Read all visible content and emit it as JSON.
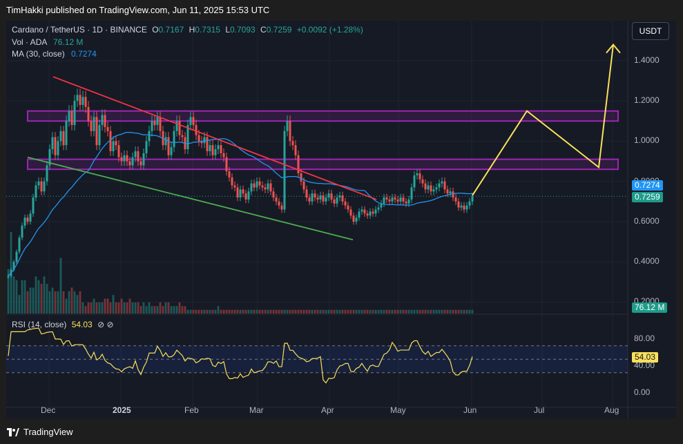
{
  "publisher_line": "TimHakki published on TradingView.com, Jun 11, 2025 15:53 UTC",
  "legend": {
    "symbol": "Cardano / TetherUS · 1D · BINANCE",
    "o_key": "O",
    "o_val": "0.7167",
    "h_key": "H",
    "h_val": "0.7315",
    "l_key": "L",
    "l_val": "0.7093",
    "c_key": "C",
    "c_val": "0.7259",
    "change": "+0.0092 (+1.28%)",
    "vol_label": "Vol · ADA",
    "vol_val": "76.12 M",
    "ma_label": "MA (30, close)",
    "ma_val": "0.7274"
  },
  "rsi_legend": {
    "label": "RSI (14, close)",
    "value": "54.03",
    "icons": "⊘ ⊘"
  },
  "currency_button": "USDT",
  "price_axis": [
    "1.4000",
    "1.2000",
    "1.0000",
    "0.8000",
    "0.6000",
    "0.4000",
    "0.2000"
  ],
  "rsi_axis": [
    "80.00",
    "40.00",
    "0.00"
  ],
  "time_axis": [
    "Dec",
    "2025",
    "Feb",
    "Mar",
    "Apr",
    "May",
    "Jun",
    "Jul",
    "Aug"
  ],
  "tags": {
    "ma": "0.7274",
    "price": "0.7259",
    "volume": "76.12 M",
    "rsi": "54.03"
  },
  "colors": {
    "up": "#26a69a",
    "down": "#ef5350",
    "ma": "#2196f3",
    "rsi": "#fbe05c",
    "zone": "#9c27b0",
    "projection": "#fbe05c",
    "res_line": "#f23645",
    "sup_line": "#4caf50"
  },
  "footer_logo": "TradingView",
  "chart_data": [
    {
      "type": "candlestick",
      "x_ticks": [
        "Dec",
        "2025",
        "Feb",
        "Mar",
        "Apr",
        "May",
        "Jun",
        "Jul",
        "Aug"
      ],
      "ylim": [
        0.2,
        1.5
      ],
      "last_close": 0.7259,
      "ma30_last": 0.7274,
      "closes": [
        0.33,
        0.36,
        0.4,
        0.45,
        0.52,
        0.58,
        0.62,
        0.6,
        0.64,
        0.72,
        0.78,
        0.8,
        0.75,
        0.8,
        0.88,
        0.96,
        1.02,
        0.93,
        1.0,
        1.05,
        0.98,
        1.1,
        1.15,
        1.08,
        1.2,
        1.23,
        1.18,
        1.22,
        1.17,
        1.1,
        1.05,
        1.12,
        0.98,
        1.08,
        1.13,
        1.07,
        1.05,
        0.95,
        1.0,
        0.98,
        0.92,
        0.9,
        0.93,
        0.9,
        0.88,
        0.92,
        0.95,
        0.9,
        0.88,
        0.94,
        1.0,
        1.05,
        1.1,
        1.08,
        1.12,
        1.05,
        0.98,
        1.02,
        0.93,
        0.97,
        1.05,
        1.1,
        1.03,
        1.02,
        0.96,
        1.08,
        1.12,
        1.08,
        1.03,
        1.0,
        0.99,
        1.02,
        0.95,
        0.98,
        0.93,
        0.96,
        0.98,
        0.94,
        0.92,
        0.85,
        0.82,
        0.78,
        0.77,
        0.72,
        0.76,
        0.74,
        0.71,
        0.75,
        0.79,
        0.77,
        0.8,
        0.78,
        0.77,
        0.76,
        0.79,
        0.75,
        0.72,
        0.7,
        0.68,
        0.66,
        1.05,
        1.1,
        1.0,
        0.98,
        0.93,
        0.84,
        0.8,
        0.76,
        0.72,
        0.7,
        0.74,
        0.72,
        0.71,
        0.73,
        0.7,
        0.72,
        0.74,
        0.71,
        0.69,
        0.72,
        0.73,
        0.7,
        0.68,
        0.66,
        0.63,
        0.6,
        0.62,
        0.65,
        0.66,
        0.64,
        0.63,
        0.65,
        0.64,
        0.66,
        0.67,
        0.69,
        0.72,
        0.71,
        0.7,
        0.72,
        0.71,
        0.7,
        0.72,
        0.7,
        0.69,
        0.71,
        0.77,
        0.83,
        0.84,
        0.81,
        0.79,
        0.76,
        0.78,
        0.75,
        0.76,
        0.77,
        0.79,
        0.8,
        0.76,
        0.74,
        0.75,
        0.72,
        0.7,
        0.67,
        0.68,
        0.66,
        0.68,
        0.7,
        0.7259
      ],
      "volume": [
        1.2,
        2.2,
        1.0,
        0.9,
        0.5,
        0.9,
        0.9,
        0.6,
        0.7,
        0.7,
        1.0,
        0.9,
        0.8,
        1.0,
        0.8,
        0.6,
        0.7,
        0.6,
        0.6,
        1.5,
        0.6,
        0.4,
        0.6,
        0.7,
        0.6,
        0.5,
        0.6,
        0.3,
        0.2,
        0.3,
        0.3,
        0.4,
        0.3,
        0.3,
        0.3,
        0.4,
        0.4,
        0.3,
        0.5,
        0.3,
        0.3,
        0.4,
        0.3,
        0.3,
        0.4,
        0.3,
        0.3,
        0.3,
        0.2,
        0.3,
        0.2,
        0.3,
        0.2,
        0.2,
        0.2,
        0.3,
        0.2,
        0.3,
        0.3,
        0.2,
        0.2,
        0.2,
        0.3,
        0.2,
        0.2,
        0.1,
        0.1,
        0.1,
        0.1,
        0.1,
        0.1,
        0.1,
        0.1,
        0.1,
        0.1,
        0.1,
        0.2,
        0.1,
        0.1,
        0.1,
        0.1,
        0.1,
        0.1,
        0.1,
        0.1,
        0.1,
        0.1,
        0.1,
        0.1,
        0.1,
        0.1,
        0.1,
        0.1,
        0.1,
        0.1,
        0.1,
        0.1,
        0.1,
        0.1,
        0.1,
        0.1,
        0.1,
        0.1,
        0.1,
        0.1,
        0.1,
        0.1,
        0.1,
        0.1,
        0.1,
        0.1,
        0.1,
        0.1,
        0.1,
        0.1,
        0.1,
        0.1,
        0.1,
        0.1,
        0.1,
        0.1,
        0.1,
        0.1,
        0.1,
        0.1,
        0.1,
        0.1,
        0.1,
        0.1,
        0.1,
        0.1,
        0.1,
        0.1,
        0.1,
        0.1,
        0.1,
        0.1,
        0.1,
        0.1,
        0.1,
        0.1,
        0.1,
        0.1,
        0.1,
        0.1,
        0.1,
        0.1,
        0.1,
        0.1,
        0.1,
        0.1,
        0.1,
        0.1,
        0.1,
        0.1,
        0.1,
        0.1,
        0.1,
        0.1,
        0.1,
        0.1,
        0.1,
        0.1,
        0.1,
        0.1,
        0.1,
        0.1,
        0.1,
        0.1
      ],
      "rsi_range": [
        0,
        100
      ],
      "rsi_levels": [
        70,
        50,
        30
      ],
      "rsi_last": 54.03,
      "resistance_zones": [
        [
          1.1,
          1.15
        ],
        [
          0.86,
          0.91
        ]
      ],
      "projection": [
        [
          0.73,
          0.91
        ],
        [
          1.15
        ],
        [
          0.87
        ],
        [
          1.48
        ]
      ]
    }
  ]
}
